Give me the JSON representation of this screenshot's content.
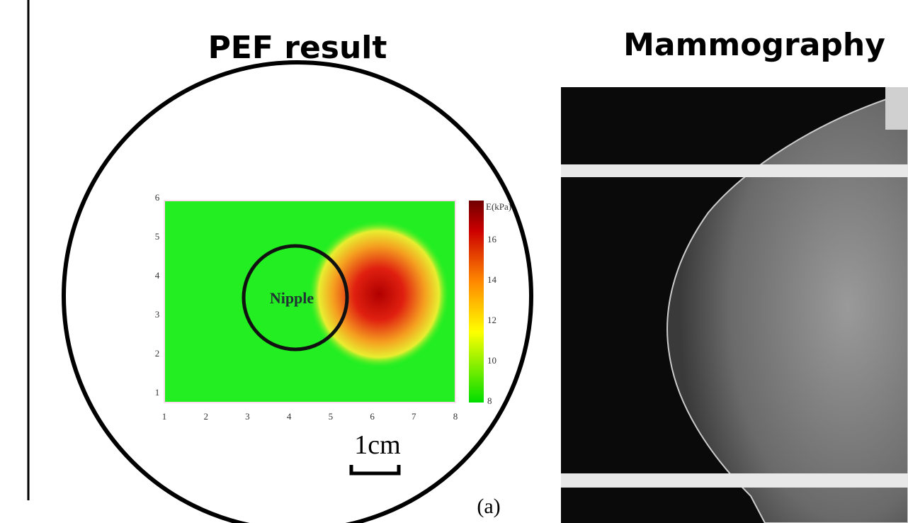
{
  "left_panel": {
    "title": "PEF result",
    "plot": {
      "xticks": [
        "1",
        "2",
        "3",
        "4",
        "5",
        "6",
        "7",
        "8"
      ],
      "yticks": [
        "1",
        "2",
        "3",
        "4",
        "5",
        "6"
      ],
      "colorbar_label": "E(kPa)",
      "colorbar_ticks": [
        "8",
        "10",
        "12",
        "14",
        "16"
      ],
      "annotation": "Nipple"
    },
    "scale_bar": "1cm",
    "panel_label": "(a)"
  },
  "right_panel": {
    "title": "Mammography"
  }
}
